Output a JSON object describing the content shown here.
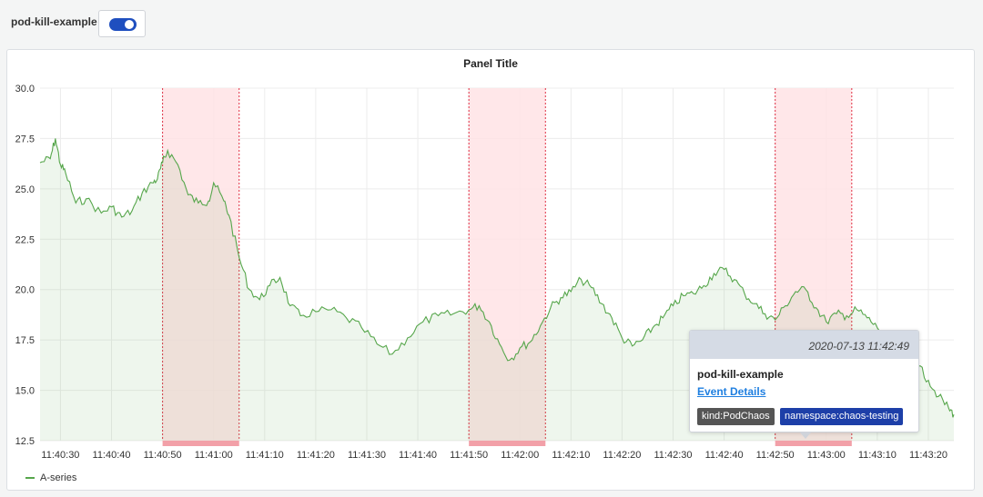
{
  "variable": {
    "label": "pod-kill-example",
    "enabled": true
  },
  "panel": {
    "title": "Panel Title"
  },
  "colors": {
    "series": "#56a64b",
    "region_fill": "#ffe3e5",
    "region_line": "#e02f44",
    "region_marker": "#f2a0a8",
    "tag_kind": "#555555",
    "tag_namespace": "#1d3fa8",
    "link": "#1f7fe0"
  },
  "chart_data": {
    "type": "area",
    "title": "Panel Title",
    "ylim": [
      12.5,
      30.0
    ],
    "yticks": [
      "30.0",
      "27.5",
      "25.0",
      "22.5",
      "20.0",
      "17.5",
      "15.0",
      "12.5"
    ],
    "xticks": [
      "11:40:30",
      "11:40:40",
      "11:40:50",
      "11:41:00",
      "11:41:10",
      "11:41:20",
      "11:41:30",
      "11:41:40",
      "11:41:50",
      "11:42:00",
      "11:42:10",
      "11:42:20",
      "11:42:30",
      "11:42:40",
      "11:42:50",
      "11:43:00",
      "11:43:10",
      "11:43:20"
    ],
    "grid": true,
    "legend_placement": "bottom-left",
    "series": [
      {
        "name": "A-series",
        "x": [
          "11:40:26",
          "11:40:28",
          "11:40:29",
          "11:40:30",
          "11:40:31",
          "11:40:33",
          "11:40:35",
          "11:40:38",
          "11:40:40",
          "11:40:42",
          "11:40:44",
          "11:40:46",
          "11:40:48",
          "11:40:49",
          "11:40:50",
          "11:40:51",
          "11:40:53",
          "11:40:55",
          "11:40:57",
          "11:40:59",
          "11:41:00",
          "11:41:02",
          "11:41:03",
          "11:41:05",
          "11:41:07",
          "11:41:09",
          "11:41:11",
          "11:41:13",
          "11:41:15",
          "11:41:17",
          "11:41:20",
          "11:41:23",
          "11:41:26",
          "11:41:29",
          "11:41:32",
          "11:41:35",
          "11:41:38",
          "11:41:41",
          "11:41:44",
          "11:41:47",
          "11:41:50",
          "11:41:52",
          "11:41:54",
          "11:41:56",
          "11:41:58",
          "11:42:00",
          "11:42:02",
          "11:42:04",
          "11:42:06",
          "11:42:08",
          "11:42:10",
          "11:42:12",
          "11:42:14",
          "11:42:16",
          "11:42:18",
          "11:42:20",
          "11:42:22",
          "11:42:24",
          "11:42:26",
          "11:42:28",
          "11:42:30",
          "11:42:32",
          "11:42:34",
          "11:42:36",
          "11:42:38",
          "11:42:40",
          "11:42:42",
          "11:42:44",
          "11:42:46",
          "11:42:48",
          "11:42:50",
          "11:42:52",
          "11:42:54",
          "11:42:56",
          "11:42:58",
          "11:43:00",
          "11:43:02",
          "11:43:04",
          "11:43:06",
          "11:43:08",
          "11:43:10",
          "11:43:12",
          "11:43:14",
          "11:43:16",
          "11:43:18",
          "11:43:20",
          "11:43:22",
          "11:43:24",
          "11:43:25"
        ],
        "values": [
          26.3,
          26.5,
          27.5,
          26.2,
          25.8,
          24.3,
          24.5,
          23.8,
          24.1,
          23.6,
          23.9,
          24.8,
          25.3,
          25.5,
          26.3,
          26.9,
          26.2,
          24.7,
          24.3,
          24.4,
          25.3,
          24.4,
          23.7,
          21.6,
          20.0,
          19.5,
          20.2,
          20.6,
          19.2,
          18.7,
          18.9,
          19.0,
          18.6,
          18.1,
          17.3,
          16.8,
          17.6,
          18.4,
          18.7,
          18.8,
          19.0,
          19.2,
          18.4,
          17.3,
          16.5,
          17.1,
          17.4,
          18.2,
          19.1,
          19.6,
          19.9,
          20.5,
          20.1,
          19.3,
          18.6,
          17.6,
          17.2,
          17.5,
          18.1,
          18.6,
          19.2,
          19.7,
          19.8,
          20.2,
          20.8,
          21.0,
          20.5,
          19.8,
          19.3,
          18.8,
          18.5,
          19.2,
          19.9,
          20.0,
          19.1,
          18.4,
          18.8,
          18.7,
          19.0,
          18.6,
          18.1,
          17.6,
          17.4,
          16.8,
          16.2,
          15.5,
          14.7,
          14.1,
          13.8
        ]
      }
    ],
    "annotations": [
      {
        "start": "11:40:50",
        "end": "11:41:05"
      },
      {
        "start": "11:41:50",
        "end": "11:42:05"
      },
      {
        "start": "11:42:50",
        "end": "11:43:05"
      }
    ]
  },
  "tooltip": {
    "time": "2020-07-13 11:42:49",
    "title": "pod-kill-example",
    "link": "Event Details",
    "tags": [
      "kind:PodChaos",
      "namespace:chaos-testing"
    ]
  }
}
